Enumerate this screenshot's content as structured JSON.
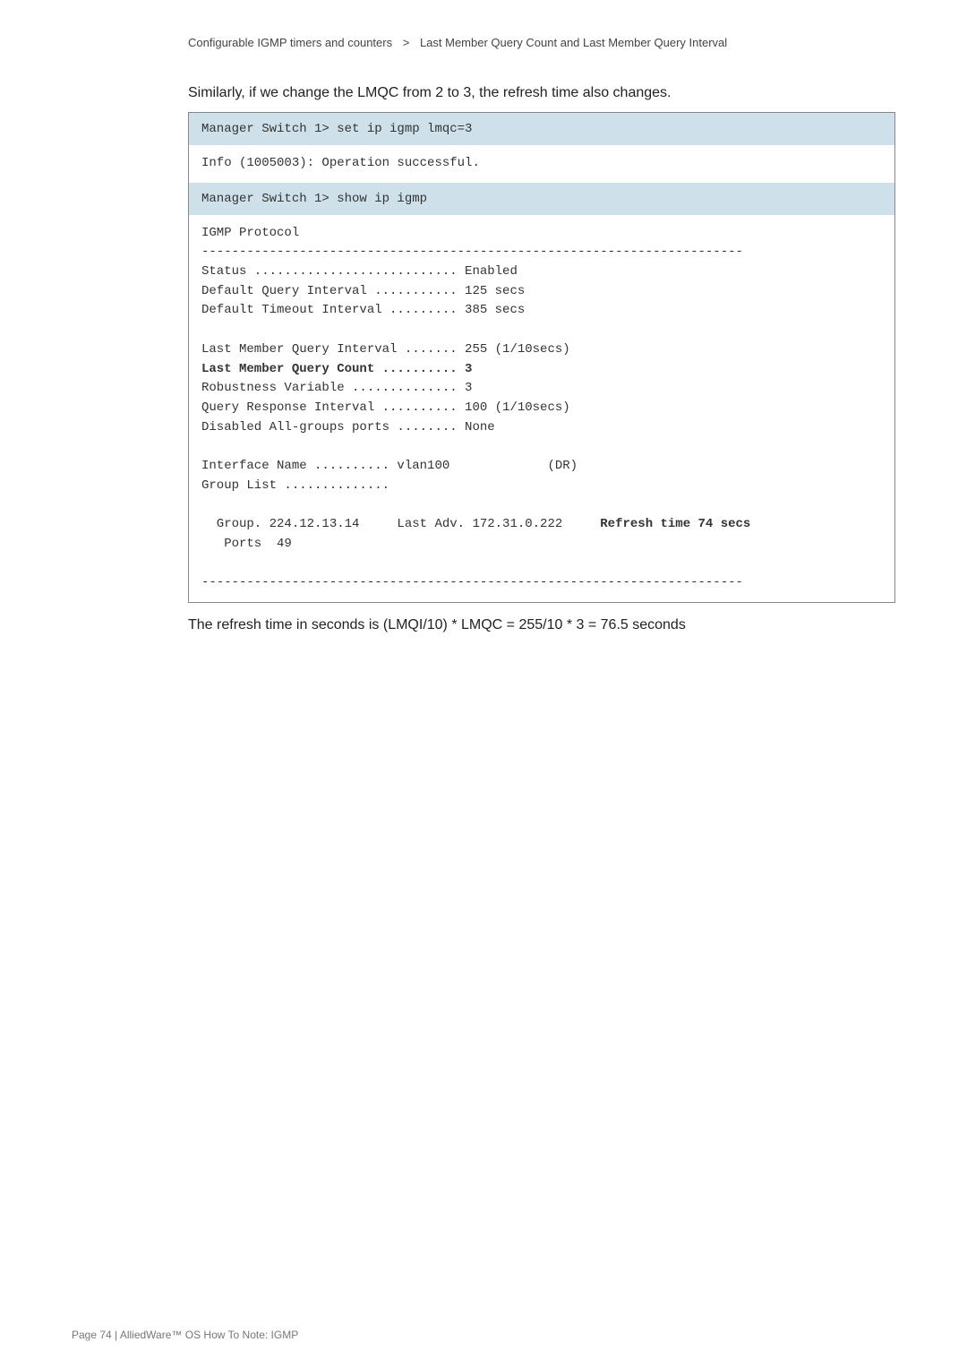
{
  "breadcrumb": {
    "part1": "Configurable IGMP timers and counters",
    "sep": ">",
    "part2": "Last Member Query Count and Last Member Query Interval"
  },
  "intro": "Similarly, if we change the LMQC from 2 to 3, the refresh time also changes.",
  "code": {
    "cmd1": "Manager Switch 1> set ip igmp lmqc=3",
    "out1": "Info (1005003): Operation successful.",
    "cmd2": "Manager Switch 1> show ip igmp",
    "out2a": "IGMP Protocol\n------------------------------------------------------------------------\nStatus ........................... Enabled\nDefault Query Interval ........... 125 secs\nDefault Timeout Interval ......... 385 secs\n\nLast Member Query Interval ....... 255 (1/10secs)",
    "out2bold1": "Last Member Query Count .......... 3",
    "out2b": "Robustness Variable .............. 3\nQuery Response Interval .......... 100 (1/10secs)\nDisabled All-groups ports ........ None\n\nInterface Name .......... vlan100             (DR)\nGroup List ..............\n",
    "out2line": "  Group. 224.12.13.14     Last Adv. 172.31.0.222     ",
    "out2bold2": "Refresh time 74 secs",
    "out2c": "   Ports  49\n\n------------------------------------------------------------------------\n"
  },
  "formula": "The refresh time in seconds is (LMQI/10) * LMQC = 255/10 * 3 = 76.5 seconds",
  "footer": "Page 74 | AlliedWare™ OS How To Note: IGMP"
}
